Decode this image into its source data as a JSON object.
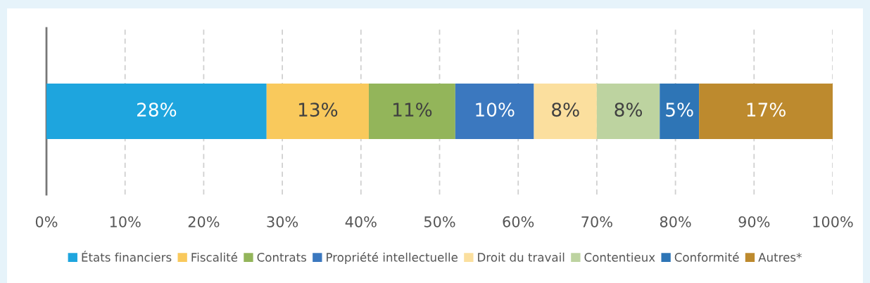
{
  "chart_data": {
    "type": "bar",
    "orientation": "horizontal",
    "stacked": true,
    "categories": [
      null
    ],
    "series": [
      {
        "name": "États financiers",
        "color": "#1ea5de",
        "values": [
          28
        ],
        "value_labels": [
          "28%"
        ]
      },
      {
        "name": "Fiscalité",
        "color": "#f9c95c",
        "values": [
          13
        ],
        "value_labels": [
          "13%"
        ]
      },
      {
        "name": "Contrats",
        "color": "#93b55a",
        "values": [
          11
        ],
        "value_labels": [
          "11%"
        ]
      },
      {
        "name": "Propriété intellectuelle",
        "color": "#3b78bf",
        "values": [
          10
        ],
        "value_labels": [
          "10%"
        ]
      },
      {
        "name": "Droit du travail",
        "color": "#fbdf9e",
        "values": [
          8
        ],
        "value_labels": [
          "8%"
        ]
      },
      {
        "name": "Contentieux",
        "color": "#bdd3a0",
        "values": [
          8
        ],
        "value_labels": [
          "8%"
        ]
      },
      {
        "name": "Conformité",
        "color": "#2e75b6",
        "values": [
          5
        ],
        "value_labels": [
          "5%"
        ]
      },
      {
        "name": "Autres*",
        "color": "#bd8a2e",
        "values": [
          17
        ],
        "value_labels": [
          "17%"
        ]
      }
    ],
    "xlim": [
      0,
      100
    ],
    "xticks": [
      {
        "value": 0,
        "label": "0%"
      },
      {
        "value": 10,
        "label": "10%"
      },
      {
        "value": 20,
        "label": "20%"
      },
      {
        "value": 30,
        "label": "30%"
      },
      {
        "value": 40,
        "label": "40%"
      },
      {
        "value": 50,
        "label": "50%"
      },
      {
        "value": 60,
        "label": "60%"
      },
      {
        "value": 70,
        "label": "70%"
      },
      {
        "value": 80,
        "label": "80%"
      },
      {
        "value": 90,
        "label": "90%"
      },
      {
        "value": 100,
        "label": "100%"
      }
    ],
    "grid": "x",
    "legend": "bottom"
  }
}
